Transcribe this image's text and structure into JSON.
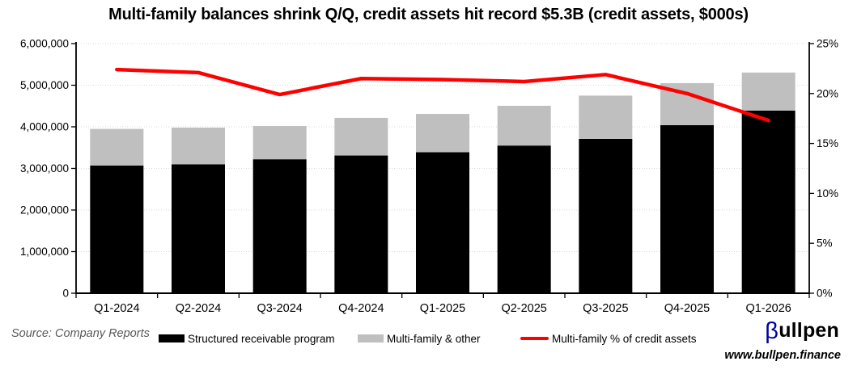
{
  "title": "Multi-family balances shrink Q/Q, credit assets hit record $5.3B (credit assets, $000s)",
  "chart_data": {
    "type": "combo: stacked-bar + line",
    "categories": [
      "Q1-2024",
      "Q2-2024",
      "Q3-2024",
      "Q4-2024",
      "Q1-2025",
      "Q2-2025",
      "Q3-2025",
      "Q4-2025",
      "Q1-2026"
    ],
    "series": [
      {
        "name": "Structured receivable program",
        "color": "#000000",
        "values": [
          3070000,
          3100000,
          3220000,
          3310000,
          3390000,
          3550000,
          3710000,
          4040000,
          4390000
        ]
      },
      {
        "name": "Multi-family & other",
        "color": "#bfbfbf",
        "values": [
          880000,
          880000,
          800000,
          905000,
          920000,
          955000,
          1040000,
          1010000,
          915000
        ]
      }
    ],
    "stack_totals": [
      3950000,
      3980000,
      4020000,
      4215000,
      4310000,
      4505000,
      4750000,
      5050000,
      5305000
    ],
    "line": {
      "name": "Multi-family % of credit assets",
      "color": "#ff0000",
      "axis": "right",
      "values_pct": [
        22.4,
        22.1,
        19.9,
        21.5,
        21.4,
        21.2,
        21.9,
        20.0,
        17.3
      ]
    },
    "left_axis": {
      "min": 0,
      "max": 6000000,
      "step": 1000000,
      "tick_labels": [
        "0",
        "1,000,000",
        "2,000,000",
        "3,000,000",
        "4,000,000",
        "5,000,000",
        "6,000,000"
      ]
    },
    "right_axis": {
      "min": 0,
      "max": 25,
      "step": 5,
      "tick_labels": [
        "0%",
        "5%",
        "10%",
        "15%",
        "20%",
        "25%"
      ]
    },
    "grid": "horizontal dotted",
    "legend_position": "bottom"
  },
  "legend": {
    "items": [
      {
        "label": "Structured receivable program",
        "swatch": "black-rect",
        "color": "#000000"
      },
      {
        "label": "Multi-family & other",
        "swatch": "gray-rect",
        "color": "#bfbfbf"
      },
      {
        "label": "Multi-family % of credit assets",
        "swatch": "red-line",
        "color": "#ff0000"
      }
    ]
  },
  "footer": {
    "source": "Source: Company Reports",
    "brand_beta": "β",
    "brand_rest": "ullpen",
    "brand_url": "www.bullpen.finance"
  },
  "colors": {
    "bar_black": "#000000",
    "bar_gray": "#bfbfbf",
    "line_red": "#ff0000",
    "grid": "#d9d9d9",
    "axis": "#000000",
    "source_text": "#595959",
    "brand_beta": "#0000a0"
  }
}
